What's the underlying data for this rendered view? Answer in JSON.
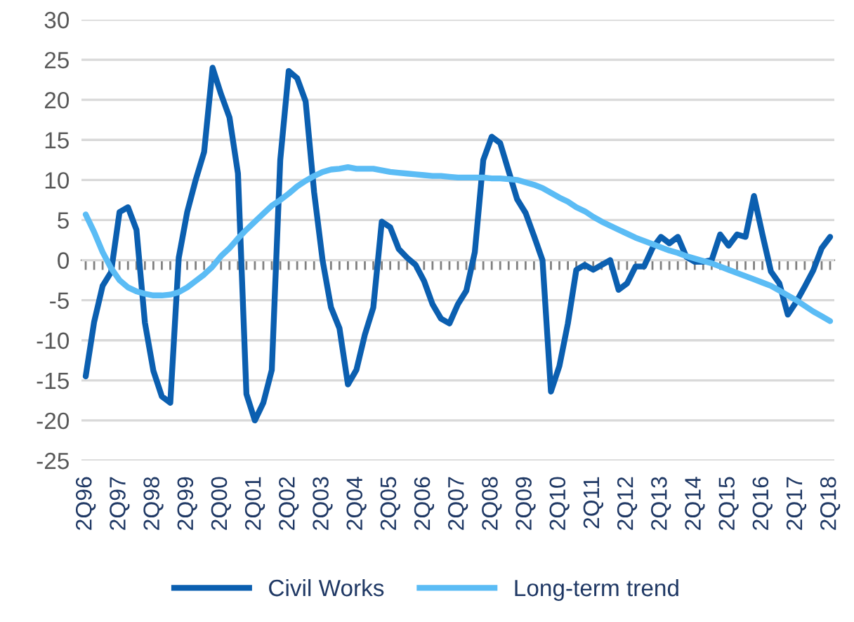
{
  "chart_data": {
    "type": "line",
    "categories": [
      "2Q96",
      null,
      null,
      null,
      "2Q97",
      null,
      null,
      null,
      "2Q98",
      null,
      null,
      null,
      "2Q99",
      null,
      null,
      null,
      "2Q00",
      null,
      null,
      null,
      "2Q01",
      null,
      null,
      null,
      "2Q02",
      null,
      null,
      null,
      "2Q03",
      null,
      null,
      null,
      "2Q04",
      null,
      null,
      null,
      "2Q05",
      null,
      null,
      null,
      "2Q06",
      null,
      null,
      null,
      "2Q07",
      null,
      null,
      null,
      "2Q08",
      null,
      null,
      null,
      "2Q09",
      null,
      null,
      null,
      "2Q10",
      null,
      null,
      null,
      "2Q11",
      null,
      null,
      null,
      "2Q12",
      null,
      null,
      null,
      "2Q13",
      null,
      null,
      null,
      "2Q14",
      null,
      null,
      null,
      "2Q15",
      null,
      null,
      null,
      "2Q16",
      null,
      null,
      null,
      "2Q17",
      null,
      null,
      null,
      "2Q18"
    ],
    "series": [
      {
        "name": "Civil Works",
        "color": "#0b5fb0",
        "values": [
          -14.5,
          -7.7,
          -3.2,
          -1.5,
          6.0,
          6.6,
          3.8,
          -7.8,
          -13.8,
          -17.0,
          -17.8,
          0.3,
          6.0,
          10.0,
          13.5,
          24.0,
          20.7,
          17.8,
          10.8,
          -16.7,
          -20.0,
          -17.8,
          -13.7,
          12.5,
          23.6,
          22.7,
          19.8,
          8.5,
          0.0,
          -5.9,
          -8.5,
          -15.5,
          -13.7,
          -9.3,
          -5.9,
          4.8,
          4.1,
          1.4,
          0.3,
          -0.6,
          -2.6,
          -5.5,
          -7.3,
          -7.9,
          -5.5,
          -3.8,
          1.0,
          12.5,
          15.4,
          14.6,
          11.1,
          7.6,
          5.9,
          3.0,
          0.0,
          -16.4,
          -13.2,
          -7.9,
          -1.2,
          -0.6,
          -1.2,
          -0.6,
          0.0,
          -3.7,
          -2.9,
          -0.8,
          -0.8,
          1.5,
          2.9,
          2.1,
          2.9,
          0.4,
          -0.2,
          -0.2,
          0.0,
          3.2,
          1.8,
          3.2,
          2.9,
          8.0,
          3.2,
          -1.4,
          -2.9,
          -6.8,
          -5.2,
          -3.3,
          -1.3,
          1.5,
          2.9
        ]
      },
      {
        "name": "Long-term trend",
        "color": "#5bbcf5",
        "values": [
          5.7,
          3.5,
          1.0,
          -1.0,
          -2.5,
          -3.4,
          -3.9,
          -4.2,
          -4.4,
          -4.4,
          -4.3,
          -4.0,
          -3.4,
          -2.6,
          -1.8,
          -0.8,
          0.5,
          1.5,
          2.7,
          3.8,
          4.8,
          5.8,
          6.8,
          7.5,
          8.3,
          9.2,
          9.9,
          10.5,
          11.0,
          11.3,
          11.4,
          11.6,
          11.4,
          11.4,
          11.4,
          11.2,
          11.0,
          10.9,
          10.8,
          10.7,
          10.6,
          10.5,
          10.5,
          10.4,
          10.3,
          10.3,
          10.3,
          10.3,
          10.2,
          10.2,
          10.1,
          10.0,
          9.7,
          9.4,
          9.0,
          8.4,
          7.8,
          7.3,
          6.6,
          6.1,
          5.4,
          4.8,
          4.3,
          3.8,
          3.3,
          2.8,
          2.4,
          2.0,
          1.6,
          1.2,
          0.9,
          0.5,
          0.2,
          -0.1,
          -0.4,
          -0.8,
          -1.2,
          -1.6,
          -2.0,
          -2.4,
          -2.8,
          -3.2,
          -3.8,
          -4.4,
          -5.0,
          -5.7,
          -6.4,
          -7.0,
          -7.6
        ]
      }
    ],
    "ylim": [
      -25,
      30
    ],
    "yticks": [
      -25,
      -20,
      -15,
      -10,
      -5,
      0,
      5,
      10,
      15,
      20,
      25,
      30
    ],
    "grid": "y",
    "legend": "bottom",
    "marker": "none",
    "line_style": "solid"
  }
}
